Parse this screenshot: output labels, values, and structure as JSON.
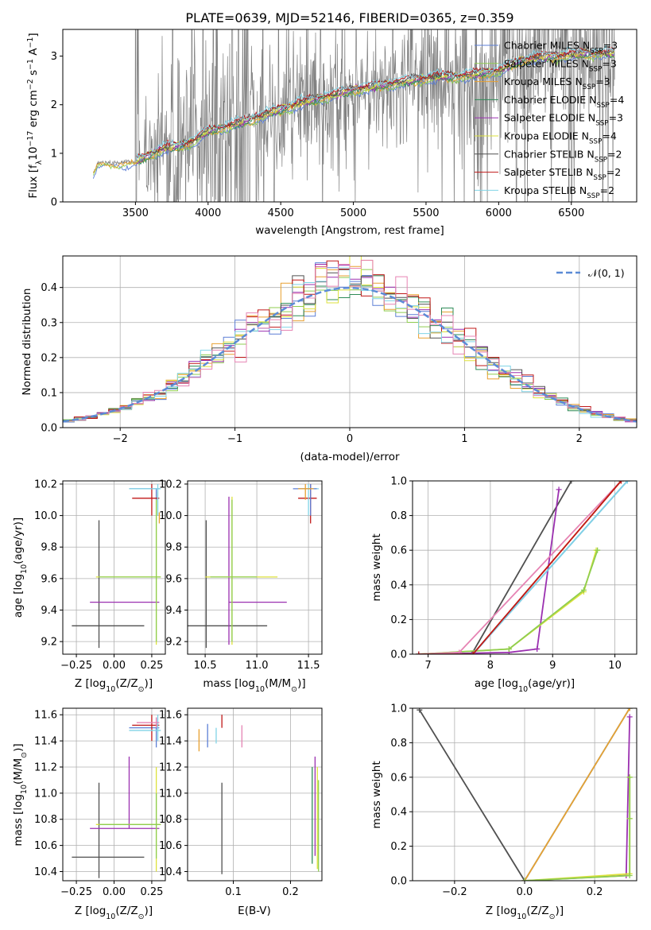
{
  "colors": {
    "chabrier_miles": "#5c7fd6",
    "salpeter_miles": "#8fce50",
    "kroupa_miles": "#e8a030",
    "chabrier_elodie": "#2e8b57",
    "salpeter_elodie": "#9b30b0",
    "kroupa_elodie": "#dde23c",
    "chabrier_stelib": "#505050",
    "salpeter_stelib": "#c01818",
    "kroupa_stelib": "#80d4e6",
    "pink": "#e684b4",
    "normal_curve": "#5b8bd6",
    "grid": "#b0b0b0",
    "data": "#808080"
  },
  "chart_data": [
    {
      "id": "spectrum",
      "type": "line",
      "title": "PLATE=0639, MJD=52146, FIBERID=0365, z=0.359",
      "xlabel": "wavelength [Angstrom, rest frame]",
      "ylabel_parts": [
        "Flux [f",
        "λ",
        "10",
        "−17",
        " erg cm",
        "−2",
        " s",
        "−1",
        " A",
        "−1",
        "]"
      ],
      "xlim": [
        3000,
        6950
      ],
      "ylim": [
        0,
        3.55
      ],
      "xticks": [
        3500,
        4000,
        4500,
        5000,
        5500,
        6000,
        6500
      ],
      "yticks": [
        0,
        1,
        2,
        3
      ],
      "grid": false,
      "legend_position": "top-right",
      "legend": [
        {
          "name": "Chabrier MILES",
          "nssp": "3",
          "color": "chabrier_miles"
        },
        {
          "name": "Salpeter MILES",
          "nssp": "3",
          "color": "salpeter_miles"
        },
        {
          "name": "Kroupa MILES",
          "nssp": "3",
          "color": "kroupa_miles"
        },
        {
          "name": "Chabrier ELODIE",
          "nssp": "4",
          "color": "chabrier_elodie"
        },
        {
          "name": "Salpeter ELODIE",
          "nssp": "3",
          "color": "salpeter_elodie"
        },
        {
          "name": "Kroupa ELODIE",
          "nssp": "4",
          "color": "kroupa_elodie"
        },
        {
          "name": "Chabrier STELIB",
          "nssp": "2",
          "color": "chabrier_stelib"
        },
        {
          "name": "Salpeter STELIB",
          "nssp": "2",
          "color": "salpeter_stelib"
        },
        {
          "name": "Kroupa STELIB",
          "nssp": "2",
          "color": "kroupa_stelib"
        }
      ],
      "continuum": [
        [
          3210,
          0.6
        ],
        [
          3240,
          0.8
        ],
        [
          3500,
          0.82
        ],
        [
          3600,
          0.97
        ],
        [
          3700,
          1.1
        ],
        [
          3800,
          1.15
        ],
        [
          3900,
          1.25
        ],
        [
          4000,
          1.45
        ],
        [
          4200,
          1.6
        ],
        [
          4400,
          1.8
        ],
        [
          4600,
          2.0
        ],
        [
          4800,
          2.15
        ],
        [
          5000,
          2.3
        ],
        [
          5200,
          2.4
        ],
        [
          5500,
          2.55
        ],
        [
          5800,
          2.6
        ],
        [
          6000,
          2.7
        ],
        [
          6200,
          2.95
        ],
        [
          6400,
          3.0
        ],
        [
          6600,
          3.05
        ],
        [
          6800,
          3.05
        ]
      ],
      "noise_regions": [
        [
          3500,
          3530,
          1.6
        ],
        [
          3560,
          3740,
          1.0
        ],
        [
          3740,
          4000,
          1.4
        ],
        [
          4000,
          4300,
          1.9
        ],
        [
          4300,
          4500,
          1.3
        ],
        [
          4500,
          4950,
          0.9
        ],
        [
          4950,
          5350,
          0.7
        ],
        [
          5350,
          5800,
          1.1
        ],
        [
          5800,
          6800,
          1.3
        ]
      ]
    },
    {
      "id": "residuals",
      "type": "histogram",
      "xlabel": "(data-model)/error",
      "ylabel": "Normed distribution",
      "xlim": [
        -2.5,
        2.5
      ],
      "ylim": [
        0,
        0.49
      ],
      "xticks": [
        -2,
        -1,
        0,
        1,
        2
      ],
      "yticks": [
        0,
        0.1,
        0.2,
        0.3,
        0.4
      ],
      "grid": true,
      "legend_position": "top-right",
      "curve_label": "𝒩(0, 1)",
      "bin_width": 0.1,
      "series_colors": [
        "chabrier_miles",
        "salpeter_miles",
        "kroupa_miles",
        "chabrier_elodie",
        "salpeter_elodie",
        "kroupa_elodie",
        "chabrier_stelib",
        "salpeter_stelib",
        "kroupa_stelib",
        "pink"
      ]
    },
    {
      "id": "age-vs-z",
      "type": "errorbar",
      "xlabel_parts": [
        "Z [log",
        "10",
        "(Z/Z",
        "⊙",
        ")]"
      ],
      "ylabel_parts": [
        "age  [log",
        "10",
        "(age/yr)]"
      ],
      "xlim": [
        -0.34,
        0.34
      ],
      "ylim": [
        9.12,
        10.22
      ],
      "xticks": [
        -0.25,
        0,
        0.25
      ],
      "yticks": [
        9.2,
        9.4,
        9.6,
        9.8,
        10.0,
        10.2
      ],
      "grid": true,
      "points": [
        {
          "c": "chabrier_stelib",
          "x": -0.1,
          "y": 9.3,
          "xlo": -0.28,
          "xhi": 0.2,
          "ylo": 9.16,
          "yhi": 9.97
        },
        {
          "c": "salpeter_elodie",
          "x": 0.1,
          "y": 9.45,
          "xlo": -0.16,
          "xhi": 0.3,
          "ylo": 9.45,
          "yhi": 9.45
        },
        {
          "c": "kroupa_elodie",
          "x": 0.28,
          "y": 9.61,
          "xlo": -0.12,
          "xhi": 0.31,
          "ylo": 9.18,
          "yhi": 10.15
        },
        {
          "c": "salpeter_miles",
          "x": 0.28,
          "y": 9.61,
          "xlo": -0.1,
          "xhi": 0.31,
          "ylo": 9.2,
          "yhi": 10.1
        },
        {
          "c": "chabrier_miles",
          "x": 0.28,
          "y": 10.17,
          "xlo": 0.1,
          "xhi": 0.3,
          "ylo": 10.1,
          "yhi": 10.17
        },
        {
          "c": "salpeter_stelib",
          "x": 0.25,
          "y": 10.11,
          "xlo": 0.12,
          "xhi": 0.3,
          "ylo": 10.0,
          "yhi": 10.2
        },
        {
          "c": "kroupa_stelib",
          "x": 0.29,
          "y": 10.17,
          "xlo": 0.1,
          "xhi": 0.31,
          "ylo": 10.0,
          "yhi": 10.2
        },
        {
          "c": "kroupa_miles",
          "x": 0.3,
          "y": 10.0,
          "xlo": 0.3,
          "xhi": 0.3,
          "ylo": 9.95,
          "yhi": 10.02
        }
      ]
    },
    {
      "id": "age-vs-mass",
      "type": "errorbar",
      "xlabel_parts": [
        "mass [log",
        "10",
        "(M/M",
        "⊙",
        ")]"
      ],
      "xlim": [
        10.33,
        11.63
      ],
      "ylim": [
        9.12,
        10.22
      ],
      "xticks": [
        10.5,
        11.0,
        11.5
      ],
      "yticks": [
        9.2,
        9.4,
        9.6,
        9.8,
        10.0,
        10.2
      ],
      "grid": true,
      "points": [
        {
          "c": "chabrier_stelib",
          "x": 10.51,
          "y": 9.3,
          "xlo": 10.31,
          "xhi": 11.1,
          "ylo": 9.16,
          "yhi": 9.97
        },
        {
          "c": "salpeter_elodie",
          "x": 10.73,
          "y": 9.45,
          "xlo": 10.73,
          "xhi": 11.29,
          "ylo": 9.18,
          "yhi": 10.12
        },
        {
          "c": "kroupa_elodie",
          "x": 10.76,
          "y": 9.61,
          "xlo": 10.5,
          "xhi": 11.2,
          "ylo": 9.18,
          "yhi": 10.12
        },
        {
          "c": "salpeter_miles",
          "x": 10.76,
          "y": 9.61,
          "xlo": 10.55,
          "xhi": 11.0,
          "ylo": 9.2,
          "yhi": 10.1
        },
        {
          "c": "salpeter_stelib",
          "x": 11.52,
          "y": 10.11,
          "xlo": 11.4,
          "xhi": 11.58,
          "ylo": 9.95,
          "yhi": 10.2
        },
        {
          "c": "kroupa_stelib",
          "x": 11.5,
          "y": 10.17,
          "xlo": 11.4,
          "xhi": 11.6,
          "ylo": 10.0,
          "yhi": 10.2
        },
        {
          "c": "chabrier_miles",
          "x": 11.52,
          "y": 10.17,
          "xlo": 11.35,
          "xhi": 11.58,
          "ylo": 10.0,
          "yhi": 10.2
        },
        {
          "c": "kroupa_miles",
          "x": 11.47,
          "y": 10.17,
          "xlo": 11.4,
          "xhi": 11.55,
          "ylo": 10.1,
          "yhi": 10.2
        }
      ]
    },
    {
      "id": "cum-age",
      "type": "line",
      "xlabel_parts": [
        "age  [log",
        "10",
        "(age/yr)]"
      ],
      "ylabel": "mass weight",
      "xlim": [
        6.75,
        10.35
      ],
      "ylim": [
        0,
        1.0
      ],
      "xticks": [
        7,
        8,
        9,
        10
      ],
      "yticks": [
        0,
        0.2,
        0.4,
        0.6,
        0.8,
        1.0
      ],
      "grid": true,
      "series": [
        {
          "c": "chabrier_stelib",
          "pts": [
            [
              6.85,
              0
            ],
            [
              7.7,
              0
            ],
            [
              9.3,
              1.0
            ]
          ]
        },
        {
          "c": "salpeter_elodie",
          "pts": [
            [
              6.85,
              0
            ],
            [
              8.3,
              0.01
            ],
            [
              8.75,
              0.03
            ],
            [
              9.1,
              0.95
            ]
          ]
        },
        {
          "c": "kroupa_elodie",
          "pts": [
            [
              6.85,
              0
            ],
            [
              8.3,
              0.03
            ],
            [
              9.5,
              0.36
            ],
            [
              9.7,
              0.6
            ]
          ]
        },
        {
          "c": "salpeter_miles",
          "pts": [
            [
              6.85,
              0
            ],
            [
              8.3,
              0.03
            ],
            [
              9.5,
              0.37
            ],
            [
              9.72,
              0.6
            ]
          ]
        },
        {
          "c": "pink",
          "pts": [
            [
              6.85,
              0
            ],
            [
              7.5,
              0.01
            ],
            [
              10.1,
              1.0
            ]
          ]
        },
        {
          "c": "kroupa_miles",
          "pts": [
            [
              6.85,
              0
            ],
            [
              7.72,
              0
            ],
            [
              10.1,
              1.0
            ]
          ]
        },
        {
          "c": "chabrier_miles",
          "pts": [
            [
              6.85,
              0
            ],
            [
              7.72,
              0
            ],
            [
              10.2,
              1.0
            ]
          ]
        },
        {
          "c": "kroupa_stelib",
          "pts": [
            [
              6.85,
              0
            ],
            [
              7.72,
              0
            ],
            [
              10.2,
              1.0
            ]
          ]
        },
        {
          "c": "salpeter_stelib",
          "pts": [
            [
              6.85,
              0
            ],
            [
              7.72,
              0
            ],
            [
              10.1,
              1.0
            ]
          ]
        }
      ]
    },
    {
      "id": "mass-vs-z",
      "type": "errorbar",
      "xlabel_parts": [
        "Z [log",
        "10",
        "(Z/Z",
        "⊙",
        ")]"
      ],
      "ylabel_parts": [
        "mass [log",
        "10",
        "(M/M",
        "⊙",
        ")]"
      ],
      "xlim": [
        -0.34,
        0.34
      ],
      "ylim": [
        10.33,
        11.65
      ],
      "xticks": [
        -0.25,
        0,
        0.25
      ],
      "yticks": [
        10.4,
        10.6,
        10.8,
        11.0,
        11.2,
        11.4,
        11.6
      ],
      "grid": true,
      "points": [
        {
          "c": "chabrier_stelib",
          "x": -0.1,
          "y": 10.51,
          "xlo": -0.28,
          "xhi": 0.2,
          "ylo": 10.35,
          "yhi": 11.08
        },
        {
          "c": "salpeter_elodie",
          "x": 0.1,
          "y": 10.73,
          "xlo": -0.16,
          "xhi": 0.3,
          "ylo": 10.73,
          "yhi": 11.28
        },
        {
          "c": "kroupa_elodie",
          "x": 0.28,
          "y": 10.76,
          "xlo": -0.12,
          "xhi": 0.31,
          "ylo": 10.4,
          "yhi": 11.2
        },
        {
          "c": "salpeter_miles",
          "x": 0.28,
          "y": 10.76,
          "xlo": -0.1,
          "xhi": 0.31,
          "ylo": 10.5,
          "yhi": 11.0
        },
        {
          "c": "chabrier_miles",
          "x": 0.28,
          "y": 11.5,
          "xlo": 0.1,
          "xhi": 0.3,
          "ylo": 11.35,
          "yhi": 11.58
        },
        {
          "c": "salpeter_stelib",
          "x": 0.25,
          "y": 11.52,
          "xlo": 0.12,
          "xhi": 0.3,
          "ylo": 11.4,
          "yhi": 11.6
        },
        {
          "c": "kroupa_stelib",
          "x": 0.29,
          "y": 11.48,
          "xlo": 0.1,
          "xhi": 0.31,
          "ylo": 11.4,
          "yhi": 11.6
        },
        {
          "c": "pink",
          "x": 0.28,
          "y": 11.54,
          "xlo": 0.15,
          "xhi": 0.3,
          "ylo": 11.5,
          "yhi": 11.58
        }
      ]
    },
    {
      "id": "mass-vs-ebv",
      "type": "errorbar",
      "xlabel": "E(B-V)",
      "xlim": [
        0.02,
        0.255
      ],
      "ylim": [
        10.33,
        11.65
      ],
      "xticks": [
        0.1,
        0.2
      ],
      "yticks": [
        10.4,
        10.6,
        10.8,
        11.0,
        11.2,
        11.4,
        11.6
      ],
      "grid": true,
      "points": [
        {
          "c": "kroupa_miles",
          "x": 0.04,
          "y": 11.4,
          "xlo": 0.04,
          "xhi": 0.04,
          "ylo": 11.32,
          "yhi": 11.49
        },
        {
          "c": "chabrier_miles",
          "x": 0.055,
          "y": 11.45,
          "xlo": 0.055,
          "xhi": 0.055,
          "ylo": 11.35,
          "yhi": 11.53
        },
        {
          "c": "kroupa_stelib",
          "x": 0.07,
          "y": 11.45,
          "xlo": 0.07,
          "xhi": 0.07,
          "ylo": 11.38,
          "yhi": 11.5
        },
        {
          "c": "salpeter_stelib",
          "x": 0.08,
          "y": 11.55,
          "xlo": 0.08,
          "xhi": 0.08,
          "ylo": 11.5,
          "yhi": 11.6
        },
        {
          "c": "pink",
          "x": 0.115,
          "y": 11.43,
          "xlo": 0.115,
          "xhi": 0.115,
          "ylo": 11.35,
          "yhi": 11.52
        },
        {
          "c": "chabrier_stelib",
          "x": 0.08,
          "y": 10.7,
          "xlo": 0.08,
          "xhi": 0.08,
          "ylo": 10.38,
          "yhi": 11.08
        },
        {
          "c": "chabrier_elodie",
          "x": 0.238,
          "y": 10.8,
          "xlo": 0.238,
          "xhi": 0.238,
          "ylo": 10.46,
          "yhi": 11.2
        },
        {
          "c": "salpeter_elodie",
          "x": 0.243,
          "y": 10.9,
          "xlo": 0.243,
          "xhi": 0.243,
          "ylo": 10.52,
          "yhi": 11.28
        },
        {
          "c": "kroupa_elodie",
          "x": 0.247,
          "y": 10.8,
          "xlo": 0.247,
          "xhi": 0.247,
          "ylo": 10.42,
          "yhi": 11.2
        },
        {
          "c": "salpeter_miles",
          "x": 0.249,
          "y": 10.7,
          "xlo": 0.249,
          "xhi": 0.249,
          "ylo": 10.4,
          "yhi": 11.1
        }
      ]
    },
    {
      "id": "cum-z",
      "type": "line",
      "xlabel_parts": [
        "Z [log",
        "10",
        "(Z/Z",
        "⊙",
        ")]"
      ],
      "ylabel": "mass weight",
      "xlim": [
        -0.32,
        0.32
      ],
      "ylim": [
        0,
        1.0
      ],
      "xticks": [
        -0.2,
        0,
        0.2
      ],
      "yticks": [
        0,
        0.2,
        0.4,
        0.6,
        0.8,
        1.0
      ],
      "grid": true,
      "series": [
        {
          "c": "chabrier_stelib",
          "pts": [
            [
              -0.3,
              0.99
            ],
            [
              0,
              0
            ]
          ]
        },
        {
          "c": "chabrier_miles",
          "pts": [
            [
              0,
              0
            ],
            [
              0.3,
              1.0
            ]
          ]
        },
        {
          "c": "kroupa_stelib",
          "pts": [
            [
              0,
              0
            ],
            [
              0.3,
              1.0
            ]
          ]
        },
        {
          "c": "kroupa_miles",
          "pts": [
            [
              0,
              0
            ],
            [
              0.3,
              1.0
            ]
          ]
        },
        {
          "c": "salpeter_elodie",
          "pts": [
            [
              0,
              0
            ],
            [
              0.29,
              0.03
            ],
            [
              0.3,
              0.95
            ]
          ]
        },
        {
          "c": "kroupa_elodie",
          "pts": [
            [
              0,
              0
            ],
            [
              0.3,
              0.04
            ],
            [
              0.3,
              0.36
            ],
            [
              0.3,
              0.6
            ]
          ]
        },
        {
          "c": "salpeter_miles",
          "pts": [
            [
              0,
              0
            ],
            [
              0.3,
              0.03
            ],
            [
              0.3,
              0.36
            ],
            [
              0.3,
              0.6
            ]
          ]
        }
      ]
    }
  ]
}
